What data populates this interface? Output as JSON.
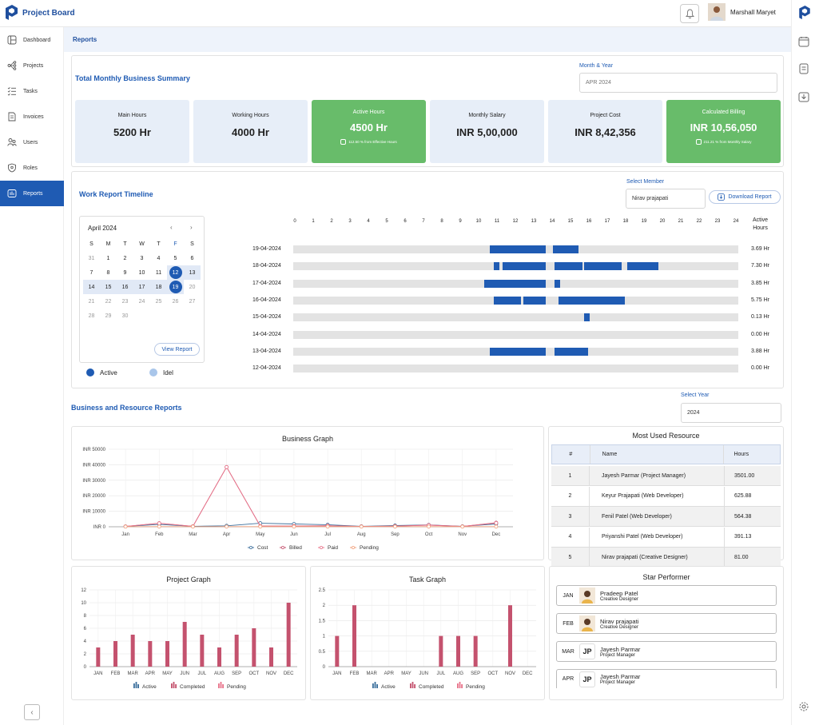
{
  "app": {
    "title": "Project Board",
    "user_name": "Marshall Maryet"
  },
  "sidebar": {
    "items": [
      {
        "label": "Dashboard",
        "icon": "dashboard-icon"
      },
      {
        "label": "Projects",
        "icon": "projects-icon"
      },
      {
        "label": "Tasks",
        "icon": "tasks-icon"
      },
      {
        "label": "Invoices",
        "icon": "invoices-icon"
      },
      {
        "label": "Users",
        "icon": "users-icon"
      },
      {
        "label": "Roles",
        "icon": "roles-icon"
      },
      {
        "label": "Reports",
        "icon": "reports-icon",
        "active": true
      }
    ]
  },
  "breadcrumb": "Reports",
  "summary": {
    "title": "Total Monthly Business Summary",
    "month_label": "Month & Year",
    "month_placeholder": "APR 2024",
    "cards": [
      {
        "title": "Main Hours",
        "value": "5200 Hr"
      },
      {
        "title": "Working Hours",
        "value": "4000 Hr"
      },
      {
        "title": "Active Hours",
        "value": "4500 Hr",
        "sub": "112.50 % from Effective Hours"
      },
      {
        "title": "Monthly Salary",
        "value": "INR 5,00,000"
      },
      {
        "title": "Project Cost",
        "value": "INR 8,42,356"
      },
      {
        "title": "Calculated Billing",
        "value": "INR 10,56,050",
        "sub": "211.21 % from Monthly Salary"
      }
    ]
  },
  "timeline": {
    "title": "Work Report Timeline",
    "member_label": "Select Member",
    "member_value": "Nirav prajapati",
    "download_label": "Download Report",
    "hours_header_1": "Active",
    "hours_header_2": "Hours",
    "axis": [
      "0",
      "1",
      "2",
      "3",
      "4",
      "5",
      "6",
      "7",
      "8",
      "9",
      "10",
      "11",
      "12",
      "13",
      "14",
      "15",
      "16",
      "17",
      "18",
      "19",
      "20",
      "21",
      "22",
      "23",
      "24"
    ],
    "rows": [
      {
        "date": "19-04-2024",
        "hours": "3.69 Hr",
        "segments": [
          [
            10.6,
            13.6
          ],
          [
            14.0,
            15.4
          ]
        ]
      },
      {
        "date": "18-04-2024",
        "hours": "7.30 Hr",
        "segments": [
          [
            10.8,
            11.1
          ],
          [
            11.3,
            13.6
          ],
          [
            14.1,
            15.6
          ],
          [
            15.7,
            17.7
          ],
          [
            18.0,
            19.7
          ]
        ]
      },
      {
        "date": "17-04-2024",
        "hours": "3.85 Hr",
        "segments": [
          [
            10.3,
            13.6
          ],
          [
            14.1,
            14.4
          ]
        ]
      },
      {
        "date": "16-04-2024",
        "hours": "5.75 Hr",
        "segments": [
          [
            10.8,
            12.3
          ],
          [
            12.4,
            13.6
          ],
          [
            14.3,
            17.9
          ]
        ]
      },
      {
        "date": "15-04-2024",
        "hours": "0.13 Hr",
        "segments": [
          [
            15.7,
            16.0
          ]
        ]
      },
      {
        "date": "14-04-2024",
        "hours": "0.00 Hr",
        "segments": []
      },
      {
        "date": "13-04-2024",
        "hours": "3.88 Hr",
        "segments": [
          [
            10.6,
            13.6
          ],
          [
            14.1,
            15.9
          ]
        ]
      },
      {
        "date": "12-04-2024",
        "hours": "0.00 Hr",
        "segments": []
      }
    ],
    "legend_active": "Active",
    "legend_idle": "Idel"
  },
  "calendar": {
    "title": "April 2024",
    "prev": "‹",
    "next": "›",
    "weekdays": [
      "S",
      "M",
      "T",
      "W",
      "T",
      "F",
      "S"
    ],
    "weeks": [
      [
        "31",
        "1",
        "2",
        "3",
        "4",
        "5",
        "6"
      ],
      [
        "7",
        "8",
        "9",
        "10",
        "11",
        "12",
        "13"
      ],
      [
        "14",
        "15",
        "16",
        "17",
        "18",
        "19",
        "20"
      ],
      [
        "21",
        "22",
        "23",
        "24",
        "25",
        "26",
        "27"
      ],
      [
        "28",
        "29",
        "30",
        "",
        "",
        "",
        ""
      ]
    ],
    "view_report": "View Report"
  },
  "business": {
    "title": "Business and Resource Reports",
    "year_label": "Select Year",
    "year_value": "2024"
  },
  "chart_data": [
    {
      "type": "line",
      "title": "Business Graph",
      "categories": [
        "Jan",
        "Feb",
        "Mar",
        "Apr",
        "May",
        "Jun",
        "Jul",
        "Aug",
        "Sep",
        "Oct",
        "Nov",
        "Dec"
      ],
      "y_ticks": [
        "INR 0",
        "INR 10000",
        "INR 20000",
        "INR 30000",
        "INR 40000",
        "INR 50000"
      ],
      "ylim": [
        0,
        50000
      ],
      "series": [
        {
          "name": "Cost",
          "color": "#3c6f9c",
          "values": [
            200,
            1500,
            300,
            600,
            2300,
            1800,
            1300,
            300,
            800,
            1200,
            300,
            1800
          ]
        },
        {
          "name": "Billed",
          "color": "#c4526e",
          "values": [
            200,
            2300,
            300,
            38500,
            500,
            500,
            700,
            200,
            400,
            1100,
            200,
            2600
          ]
        },
        {
          "name": "Paid",
          "color": "#e8738a",
          "values": [
            200,
            2200,
            300,
            38500,
            400,
            400,
            600,
            200,
            400,
            1000,
            200,
            2400
          ]
        },
        {
          "name": "Pending",
          "color": "#f2a07b",
          "values": [
            100,
            100,
            100,
            100,
            100,
            100,
            100,
            100,
            100,
            100,
            100,
            100
          ]
        }
      ]
    },
    {
      "type": "bar",
      "title": "Project Graph",
      "categories": [
        "JAN",
        "FEB",
        "MAR",
        "APR",
        "MAY",
        "JUN",
        "JUL",
        "AUG",
        "SEP",
        "OCT",
        "NOV",
        "DEC"
      ],
      "y_ticks": [
        "0",
        "2",
        "4",
        "6",
        "8",
        "10",
        "12"
      ],
      "ylim": [
        0,
        12
      ],
      "series": [
        {
          "name": "Active",
          "color": "#3c6f9c",
          "values": [
            0,
            0,
            0,
            0,
            0,
            0,
            0,
            0,
            0,
            0,
            0,
            0
          ]
        },
        {
          "name": "Completed",
          "color": "#c4526e",
          "values": [
            3,
            4,
            5,
            4,
            4,
            7,
            5,
            3,
            5,
            6,
            3,
            10
          ]
        },
        {
          "name": "Pending",
          "color": "#e8738a",
          "values": [
            0,
            0,
            0,
            0,
            0,
            0,
            0,
            0,
            0,
            0,
            0,
            0
          ]
        }
      ]
    },
    {
      "type": "bar",
      "title": "Task Graph",
      "categories": [
        "JAN",
        "FEB",
        "MAR",
        "APR",
        "MAY",
        "JUN",
        "JUL",
        "AUG",
        "SEP",
        "OCT",
        "NOV",
        "DEC"
      ],
      "y_ticks": [
        "0",
        "0.5",
        "1",
        "1.5",
        "2",
        "2.5"
      ],
      "ylim": [
        0,
        2.5
      ],
      "series": [
        {
          "name": "Active",
          "color": "#3c6f9c",
          "values": [
            0,
            0,
            0,
            0,
            0,
            0,
            0,
            0,
            0,
            0,
            0,
            0
          ]
        },
        {
          "name": "Completed",
          "color": "#c4526e",
          "values": [
            1,
            2,
            0,
            0,
            0,
            0,
            1,
            1,
            1,
            0,
            2,
            0
          ]
        },
        {
          "name": "Pending",
          "color": "#e8738a",
          "values": [
            0,
            0,
            0,
            0,
            0,
            0,
            0,
            0,
            0,
            0,
            0,
            0
          ]
        }
      ]
    }
  ],
  "resources": {
    "title": "Most Used Resource",
    "headers": [
      "#",
      "Name",
      "Hours"
    ],
    "rows": [
      [
        "1",
        "Jayesh Parmar (Project Manager)",
        "3501.00"
      ],
      [
        "2",
        "Keyur Prajapati (Web Developer)",
        "625.88"
      ],
      [
        "3",
        "Fenil Patel (Web Developer)",
        "564.38"
      ],
      [
        "4",
        "Priyanshi Patel (Web Developer)",
        "391.13"
      ],
      [
        "5",
        "Nirav prajapati (Creative Designer)",
        "81.00"
      ]
    ]
  },
  "star_performer": {
    "title": "Star Performer",
    "items": [
      {
        "month": "JAN",
        "name": "Pradeep Patel",
        "role": "Creative Designer",
        "initials": ""
      },
      {
        "month": "FEB",
        "name": "Nirav prajapati",
        "role": "Creative Designer",
        "initials": ""
      },
      {
        "month": "MAR",
        "name": "Jayesh Parmar",
        "role": "Project Manager",
        "initials": "JP"
      },
      {
        "month": "APR",
        "name": "Jayesh Parmar",
        "role": "Project Manager",
        "initials": "JP"
      }
    ]
  }
}
